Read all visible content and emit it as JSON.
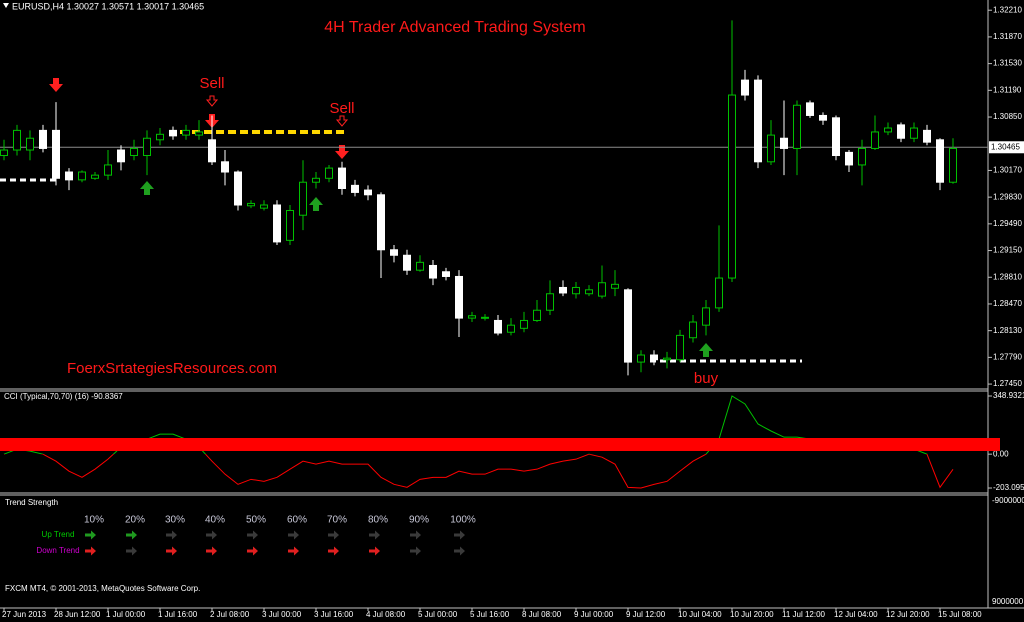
{
  "header": "EURUSD,H4  1.30027 1.30571 1.30017 1.30465",
  "chart_data": [
    {
      "type": "candlestick",
      "title": "4H Trader Advanced Trading System",
      "annotations": [
        "Sell",
        "Sell",
        "buy",
        "FoerxSrtategiesResources.com"
      ],
      "categories": [
        "27 Jun 2013",
        null,
        null,
        null,
        "28 Jun 12:00",
        null,
        null,
        null,
        "1 Jul 00:00",
        null,
        null,
        null,
        "1 Jul 16:00",
        null,
        null,
        null,
        "2 Jul 08:00",
        null,
        null,
        null,
        "3 Jul 00:00",
        null,
        null,
        null,
        "3 Jul 16:00",
        null,
        null,
        null,
        "4 Jul 08:00",
        null,
        null,
        null,
        "5 Jul 00:00",
        null,
        null,
        null,
        "5 Jul 16:00",
        null,
        null,
        null,
        "8 Jul 08:00",
        null,
        null,
        null,
        "9 Jul 00:00",
        null,
        null,
        null,
        "9 Jul 12:00",
        null,
        null,
        null,
        "10 Jul 04:00",
        null,
        null,
        null,
        "10 Jul 20:00",
        null,
        null,
        null,
        "11 Jul 12:00",
        null,
        null,
        null,
        "12 Jul 04:00",
        null,
        null,
        null,
        "12 Jul 20:00",
        null,
        null,
        null,
        "15 Jul 08:00",
        null
      ],
      "open": [
        1.3036,
        1.3043,
        1.3043,
        1.3068,
        1.3068,
        1.3015,
        1.3005,
        1.3007,
        1.3011,
        1.3043,
        1.3036,
        1.3036,
        1.3056,
        1.3068,
        1.3062,
        1.3062,
        1.3056,
        1.3028,
        1.3015,
        1.2972,
        1.2969,
        1.2973,
        1.2928,
        1.296,
        1.3002,
        1.3007,
        1.302,
        1.2998,
        1.2992,
        1.2986,
        1.2916,
        1.2909,
        1.289,
        1.2896,
        1.2888,
        1.2882,
        1.2829,
        1.2829,
        1.2826,
        1.2811,
        1.2816,
        1.2826,
        1.2839,
        1.2868,
        1.286,
        1.286,
        1.2857,
        1.2867,
        1.2865,
        1.2773,
        1.2782,
        1.2776,
        1.2776,
        1.2804,
        1.282,
        1.2842,
        1.288,
        1.3132,
        1.3132,
        1.3028,
        1.3058,
        1.3045,
        1.3103,
        1.3087,
        1.3084,
        1.304,
        1.3024,
        1.3045,
        1.3066,
        1.3075,
        1.3058,
        1.3068,
        1.3056,
        1.3002
      ],
      "high": [
        1.3056,
        1.3075,
        1.3068,
        1.3075,
        1.3104,
        1.302,
        1.3017,
        1.3015,
        1.3043,
        1.3049,
        1.3056,
        1.3068,
        1.3071,
        1.3073,
        1.3075,
        1.3081,
        1.3087,
        1.3043,
        1.3017,
        1.2979,
        1.2979,
        1.2979,
        1.2973,
        1.303,
        1.3015,
        1.3024,
        1.3028,
        1.3005,
        1.2998,
        1.2989,
        1.2922,
        1.2916,
        1.2909,
        1.2903,
        1.2893,
        1.289,
        1.2837,
        1.2834,
        1.2833,
        1.2829,
        1.2837,
        1.2852,
        1.2877,
        1.2877,
        1.2875,
        1.2871,
        1.2896,
        1.289,
        1.2867,
        1.2788,
        1.2788,
        1.2786,
        1.2814,
        1.2833,
        1.2852,
        1.2947,
        1.3208,
        1.3145,
        1.3138,
        1.3081,
        1.3106,
        1.3106,
        1.3106,
        1.3091,
        1.3087,
        1.3043,
        1.3056,
        1.3087,
        1.3078,
        1.3078,
        1.3078,
        1.3075,
        1.3058,
        1.3058
      ],
      "low": [
        1.303,
        1.3036,
        1.303,
        1.304,
        1.2998,
        1.2992,
        1.3002,
        1.3005,
        1.3005,
        1.3017,
        1.303,
        1.3011,
        1.3049,
        1.3056,
        1.3056,
        1.3056,
        1.3024,
        1.2998,
        1.2966,
        1.2969,
        1.2966,
        1.2922,
        1.2922,
        1.2941,
        1.2994,
        1.3002,
        1.2986,
        1.2984,
        1.2979,
        1.288,
        1.29,
        1.2884,
        1.2888,
        1.2871,
        1.2877,
        1.2805,
        1.2824,
        1.2826,
        1.2807,
        1.2807,
        1.2811,
        1.2824,
        1.2833,
        1.2857,
        1.2854,
        1.2857,
        1.2854,
        1.2857,
        1.2756,
        1.276,
        1.2769,
        1.2765,
        1.2773,
        1.2798,
        1.2807,
        1.2837,
        1.2875,
        1.3106,
        1.302,
        1.3024,
        1.3011,
        1.3011,
        1.3084,
        1.3075,
        1.303,
        1.3015,
        1.2998,
        1.3043,
        1.3062,
        1.3053,
        1.3053,
        1.3049,
        1.2992,
        1.3
      ],
      "close": [
        1.3043,
        1.3068,
        1.3058,
        1.3045,
        1.3007,
        1.3005,
        1.3015,
        1.3011,
        1.3024,
        1.3028,
        1.3045,
        1.3058,
        1.3063,
        1.3061,
        1.3068,
        1.3066,
        1.3028,
        1.3015,
        1.2973,
        1.2975,
        1.2973,
        1.2926,
        1.2966,
        1.3002,
        1.3007,
        1.302,
        1.2994,
        1.2989,
        1.2986,
        1.2916,
        1.2909,
        1.289,
        1.29,
        1.288,
        1.2882,
        1.2829,
        1.2832,
        1.283,
        1.281,
        1.282,
        1.2826,
        1.2839,
        1.286,
        1.2861,
        1.2868,
        1.2865,
        1.2874,
        1.2872,
        1.2773,
        1.2782,
        1.2776,
        1.2778,
        1.2807,
        1.2824,
        1.2842,
        1.288,
        1.3113,
        1.3113,
        1.3028,
        1.3062,
        1.3045,
        1.31,
        1.3087,
        1.3081,
        1.3036,
        1.3024,
        1.3045,
        1.3066,
        1.3071,
        1.3058,
        1.3071,
        1.3053,
        1.3002,
        1.3045
      ],
      "up_color": "#00c000",
      "down_color": "#ffffff",
      "current_price": 1.30465,
      "ylim": [
        1.274,
        1.3234
      ],
      "yticks": [
        {
          "value": 1.3221,
          "label": "1.32210"
        },
        {
          "value": 1.3187,
          "label": "1.31870"
        },
        {
          "value": 1.3153,
          "label": "1.31530"
        },
        {
          "value": 1.3119,
          "label": "1.31190"
        },
        {
          "value": 1.3085,
          "label": "1.30850"
        },
        {
          "value": 1.3017,
          "label": "1.30170"
        },
        {
          "value": 1.2983,
          "label": "1.29830"
        },
        {
          "value": 1.2949,
          "label": "1.29490"
        },
        {
          "value": 1.2915,
          "label": "1.29150"
        },
        {
          "value": 1.2881,
          "label": "1.28810"
        },
        {
          "value": 1.2847,
          "label": "1.28470"
        },
        {
          "value": 1.2813,
          "label": "1.28130"
        },
        {
          "value": 1.2779,
          "label": "1.27790"
        },
        {
          "value": 1.2745,
          "label": "1.27450"
        }
      ]
    },
    {
      "type": "line",
      "title": "CCI (Typical,70,70) (16) -90.8367",
      "values": [
        0,
        30,
        18,
        0,
        -42,
        -102,
        -139,
        -90,
        -30,
        42,
        90,
        90,
        120,
        120,
        90,
        42,
        -42,
        -120,
        -181,
        -151,
        -163,
        -139,
        -90,
        -42,
        -60,
        -42,
        -60,
        -60,
        -60,
        -139,
        -181,
        -199,
        -151,
        -139,
        -139,
        -102,
        -120,
        -120,
        -90,
        -90,
        -102,
        -90,
        -60,
        -42,
        -30,
        0,
        -18,
        -60,
        -199,
        -203.0952,
        -181,
        -163,
        -102,
        -42,
        0,
        90,
        348.9321,
        301,
        181,
        139,
        102,
        102,
        90,
        60,
        42,
        30,
        30,
        30,
        30,
        42,
        30,
        0,
        -199,
        -90.8367
      ],
      "positive_color": "#00c000",
      "negative_color": "#ff0000",
      "ylim": [
        -227,
        373
      ],
      "yticks": [
        348.9321,
        {
          "value": 0,
          "label": "0.00"
        },
        -203.0952
      ]
    }
  ],
  "trend_strength": {
    "title": "Trend Strength",
    "columns": [
      "10%",
      "20%",
      "30%",
      "40%",
      "50%",
      "60%",
      "70%",
      "80%",
      "90%",
      "100%"
    ],
    "rows": [
      {
        "label": "Up Trend",
        "color": "#00cc00",
        "arrows": [
          "#1f9a1f",
          "#1f9a1f",
          "#3a3a3a",
          "#3a3a3a",
          "#3a3a3a",
          "#3a3a3a",
          "#3a3a3a",
          "#3a3a3a",
          "#3a3a3a",
          "#3a3a3a"
        ]
      },
      {
        "label": "Down Trend",
        "color": "#d000d0",
        "arrows": [
          "#e02020",
          "#3a3a3a",
          "#e02020",
          "#e02020",
          "#e02020",
          "#e02020",
          "#e02020",
          "#e02020",
          "#3a3a3a",
          "#3a3a3a"
        ]
      }
    ],
    "scale": [
      -9000000,
      9000000
    ]
  },
  "footer": "FXCM MT4, © 2001-2013, MetaQuotes Software Corp."
}
